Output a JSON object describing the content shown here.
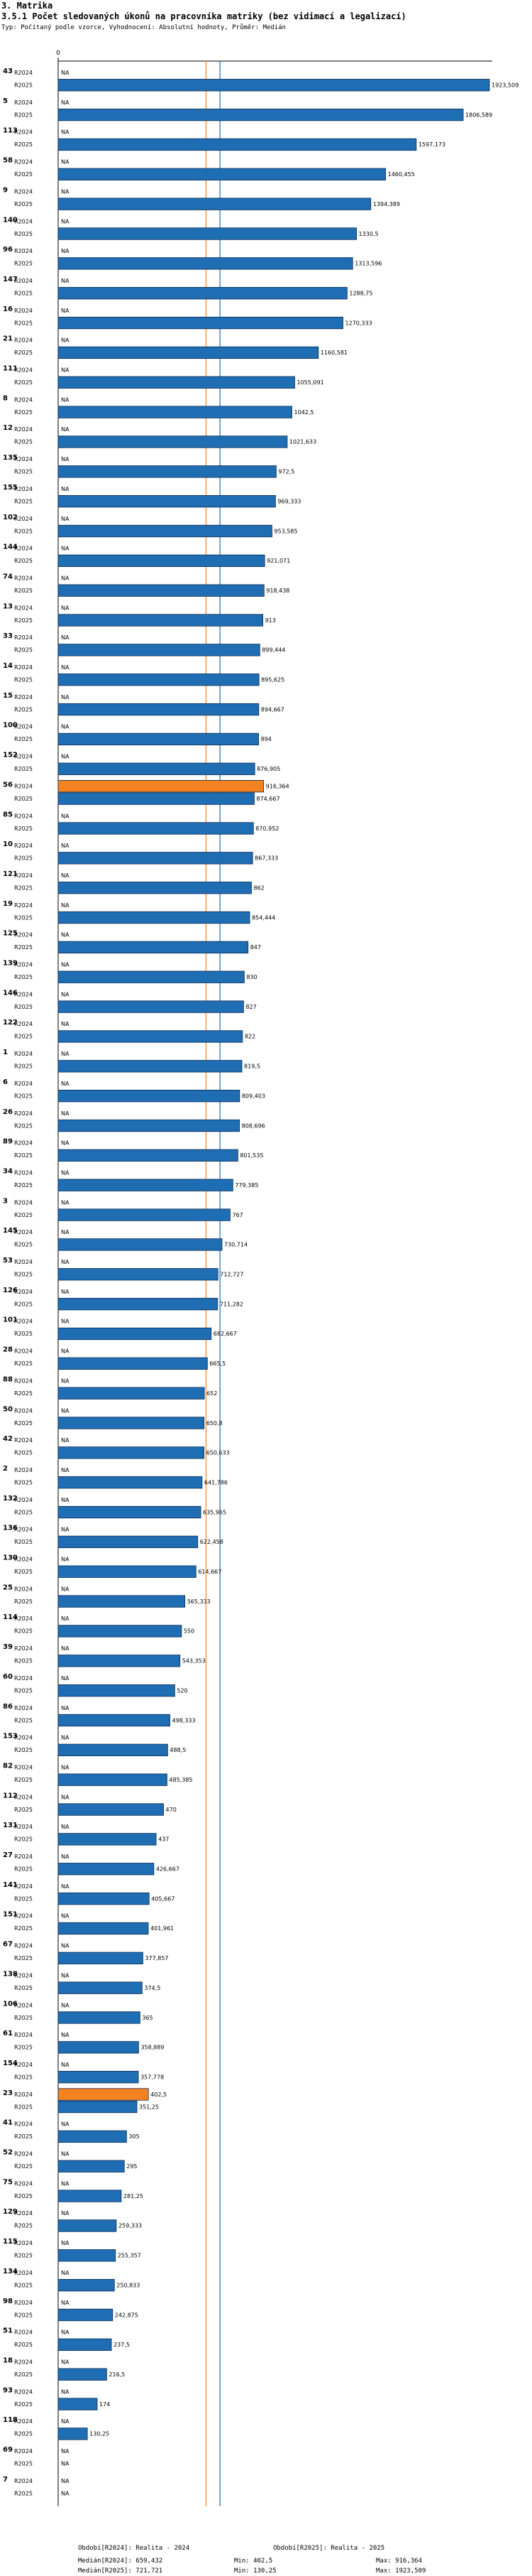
{
  "header": {
    "section": "3. Matrika",
    "title": "3.5.1 Počet sledovaných úkonů na pracovníka matriky (bez vidimací a legalizací)",
    "subtitle": "Typ: Počítaný podle vzorce, Vyhodnocení: Absolutní hodnoty, Průměr: Medián"
  },
  "chart_data": {
    "type": "bar",
    "orientation": "horizontal",
    "axis_zero_label": "0",
    "series_labels": [
      "R2024",
      "R2025"
    ],
    "na_label": "NA",
    "colors": {
      "R2024": "#f58220",
      "R2025": "#1f6eb4",
      "outline": "#0a2a55"
    },
    "reference_lines": [
      {
        "name": "median-R2024",
        "value": 659.432,
        "color": "#f58220"
      },
      {
        "name": "median-R2025",
        "value": 721.721,
        "color": "#1f6eb4"
      }
    ],
    "xlim": [
      0,
      1923.509
    ],
    "categories": [
      {
        "id": "43",
        "r2024": null,
        "r2025": 1923.509,
        "label2025": "1923,509"
      },
      {
        "id": "5",
        "r2024": null,
        "r2025": 1806.589,
        "label2025": "1806,589"
      },
      {
        "id": "113",
        "r2024": null,
        "r2025": 1597.173,
        "label2025": "1597,173"
      },
      {
        "id": "58",
        "r2024": null,
        "r2025": 1460.455,
        "label2025": "1460,455"
      },
      {
        "id": "9",
        "r2024": null,
        "r2025": 1394.389,
        "label2025": "1394,389"
      },
      {
        "id": "140",
        "r2024": null,
        "r2025": 1330.5,
        "label2025": "1330,5"
      },
      {
        "id": "96",
        "r2024": null,
        "r2025": 1313.596,
        "label2025": "1313,596"
      },
      {
        "id": "147",
        "r2024": null,
        "r2025": 1288.75,
        "label2025": "1288,75"
      },
      {
        "id": "16",
        "r2024": null,
        "r2025": 1270.333,
        "label2025": "1270,333"
      },
      {
        "id": "21",
        "r2024": null,
        "r2025": 1160.581,
        "label2025": "1160,581"
      },
      {
        "id": "111",
        "r2024": null,
        "r2025": 1055.091,
        "label2025": "1055,091"
      },
      {
        "id": "8",
        "r2024": null,
        "r2025": 1042.5,
        "label2025": "1042,5"
      },
      {
        "id": "12",
        "r2024": null,
        "r2025": 1021.633,
        "label2025": "1021,633"
      },
      {
        "id": "135",
        "r2024": null,
        "r2025": 972.5,
        "label2025": "972,5"
      },
      {
        "id": "155",
        "r2024": null,
        "r2025": 969.333,
        "label2025": "969,333"
      },
      {
        "id": "102",
        "r2024": null,
        "r2025": 953.585,
        "label2025": "953,585"
      },
      {
        "id": "144",
        "r2024": null,
        "r2025": 921.071,
        "label2025": "921,071"
      },
      {
        "id": "74",
        "r2024": null,
        "r2025": 918.438,
        "label2025": "918,438"
      },
      {
        "id": "13",
        "r2024": null,
        "r2025": 913,
        "label2025": "913"
      },
      {
        "id": "33",
        "r2024": null,
        "r2025": 899.444,
        "label2025": "899,444"
      },
      {
        "id": "14",
        "r2024": null,
        "r2025": 895.625,
        "label2025": "895,625"
      },
      {
        "id": "15",
        "r2024": null,
        "r2025": 894.667,
        "label2025": "894,667"
      },
      {
        "id": "100",
        "r2024": null,
        "r2025": 894,
        "label2025": "894"
      },
      {
        "id": "152",
        "r2024": null,
        "r2025": 876.905,
        "label2025": "876,905"
      },
      {
        "id": "56",
        "r2024": 916.364,
        "label2024": "916,364",
        "r2025": 874.667,
        "label2025": "874,667"
      },
      {
        "id": "85",
        "r2024": null,
        "r2025": 870.952,
        "label2025": "870,952"
      },
      {
        "id": "10",
        "r2024": null,
        "r2025": 867.333,
        "label2025": "867,333"
      },
      {
        "id": "121",
        "r2024": null,
        "r2025": 862,
        "label2025": "862"
      },
      {
        "id": "19",
        "r2024": null,
        "r2025": 854.444,
        "label2025": "854,444"
      },
      {
        "id": "125",
        "r2024": null,
        "r2025": 847,
        "label2025": "847"
      },
      {
        "id": "139",
        "r2024": null,
        "r2025": 830,
        "label2025": "830"
      },
      {
        "id": "146",
        "r2024": null,
        "r2025": 827,
        "label2025": "827"
      },
      {
        "id": "122",
        "r2024": null,
        "r2025": 822,
        "label2025": "822"
      },
      {
        "id": "1",
        "r2024": null,
        "r2025": 819.5,
        "label2025": "819,5"
      },
      {
        "id": "6",
        "r2024": null,
        "r2025": 809.403,
        "label2025": "809,403"
      },
      {
        "id": "26",
        "r2024": null,
        "r2025": 808.696,
        "label2025": "808,696"
      },
      {
        "id": "89",
        "r2024": null,
        "r2025": 801.535,
        "label2025": "801,535"
      },
      {
        "id": "34",
        "r2024": null,
        "r2025": 779.385,
        "label2025": "779,385"
      },
      {
        "id": "3",
        "r2024": null,
        "r2025": 767,
        "label2025": "767"
      },
      {
        "id": "145",
        "r2024": null,
        "r2025": 730.714,
        "label2025": "730,714"
      },
      {
        "id": "53",
        "r2024": null,
        "r2025": 712.727,
        "label2025": "712,727"
      },
      {
        "id": "126",
        "r2024": null,
        "r2025": 711.282,
        "label2025": "711,282"
      },
      {
        "id": "101",
        "r2024": null,
        "r2025": 682.667,
        "label2025": "682,667"
      },
      {
        "id": "28",
        "r2024": null,
        "r2025": 665.5,
        "label2025": "665,5"
      },
      {
        "id": "88",
        "r2024": null,
        "r2025": 652,
        "label2025": "652"
      },
      {
        "id": "50",
        "r2024": null,
        "r2025": 650.8,
        "label2025": "650,8"
      },
      {
        "id": "42",
        "r2024": null,
        "r2025": 650.633,
        "label2025": "650,633"
      },
      {
        "id": "2",
        "r2024": null,
        "r2025": 641.786,
        "label2025": "641,786"
      },
      {
        "id": "132",
        "r2024": null,
        "r2025": 635.965,
        "label2025": "635,965"
      },
      {
        "id": "136",
        "r2024": null,
        "r2025": 622.458,
        "label2025": "622,458"
      },
      {
        "id": "130",
        "r2024": null,
        "r2025": 614.667,
        "label2025": "614,667"
      },
      {
        "id": "25",
        "r2024": null,
        "r2025": 565.333,
        "label2025": "565,333"
      },
      {
        "id": "114",
        "r2024": null,
        "r2025": 550,
        "label2025": "550"
      },
      {
        "id": "39",
        "r2024": null,
        "r2025": 543.353,
        "label2025": "543,353"
      },
      {
        "id": "60",
        "r2024": null,
        "r2025": 520,
        "label2025": "520"
      },
      {
        "id": "86",
        "r2024": null,
        "r2025": 498.333,
        "label2025": "498,333"
      },
      {
        "id": "153",
        "r2024": null,
        "r2025": 488.5,
        "label2025": "488,5"
      },
      {
        "id": "82",
        "r2024": null,
        "r2025": 485.385,
        "label2025": "485,385"
      },
      {
        "id": "112",
        "r2024": null,
        "r2025": 470,
        "label2025": "470"
      },
      {
        "id": "131",
        "r2024": null,
        "r2025": 437,
        "label2025": "437"
      },
      {
        "id": "27",
        "r2024": null,
        "r2025": 426.667,
        "label2025": "426,667"
      },
      {
        "id": "141",
        "r2024": null,
        "r2025": 405.667,
        "label2025": "405,667"
      },
      {
        "id": "151",
        "r2024": null,
        "r2025": 401.961,
        "label2025": "401,961"
      },
      {
        "id": "67",
        "r2024": null,
        "r2025": 377.857,
        "label2025": "377,857"
      },
      {
        "id": "138",
        "r2024": null,
        "r2025": 374.5,
        "label2025": "374,5"
      },
      {
        "id": "106",
        "r2024": null,
        "r2025": 365,
        "label2025": "365"
      },
      {
        "id": "61",
        "r2024": null,
        "r2025": 358.889,
        "label2025": "358,889"
      },
      {
        "id": "154",
        "r2024": null,
        "r2025": 357.778,
        "label2025": "357,778"
      },
      {
        "id": "23",
        "r2024": 402.5,
        "label2024": "402,5",
        "r2025": 351.25,
        "label2025": "351,25"
      },
      {
        "id": "41",
        "r2024": null,
        "r2025": 305,
        "label2025": "305"
      },
      {
        "id": "52",
        "r2024": null,
        "r2025": 295,
        "label2025": "295"
      },
      {
        "id": "75",
        "r2024": null,
        "r2025": 281.25,
        "label2025": "281,25"
      },
      {
        "id": "129",
        "r2024": null,
        "r2025": 259.333,
        "label2025": "259,333"
      },
      {
        "id": "115",
        "r2024": null,
        "r2025": 255.357,
        "label2025": "255,357"
      },
      {
        "id": "134",
        "r2024": null,
        "r2025": 250.833,
        "label2025": "250,833"
      },
      {
        "id": "98",
        "r2024": null,
        "r2025": 242.875,
        "label2025": "242,875"
      },
      {
        "id": "51",
        "r2024": null,
        "r2025": 237.5,
        "label2025": "237,5"
      },
      {
        "id": "18",
        "r2024": null,
        "r2025": 216.5,
        "label2025": "216,5"
      },
      {
        "id": "93",
        "r2024": null,
        "r2025": 174,
        "label2025": "174"
      },
      {
        "id": "118",
        "r2024": null,
        "r2025": 130.25,
        "label2025": "130,25"
      },
      {
        "id": "69",
        "r2024": null,
        "r2025": null
      },
      {
        "id": "7",
        "r2024": null,
        "r2025": null
      }
    ]
  },
  "footer": {
    "period_2024": "Období[R2024]: Realita - 2024",
    "period_2025": "Období[R2025]: Realita - 2025",
    "median_2024": "Medián[R2024]: 659,432",
    "median_2025": "Medián[R2025]: 721,721",
    "min_2024": "Min: 402,5",
    "min_2025": "Min: 130,25",
    "max_2024": "Max: 916,364",
    "max_2025": "Max: 1923,509"
  }
}
